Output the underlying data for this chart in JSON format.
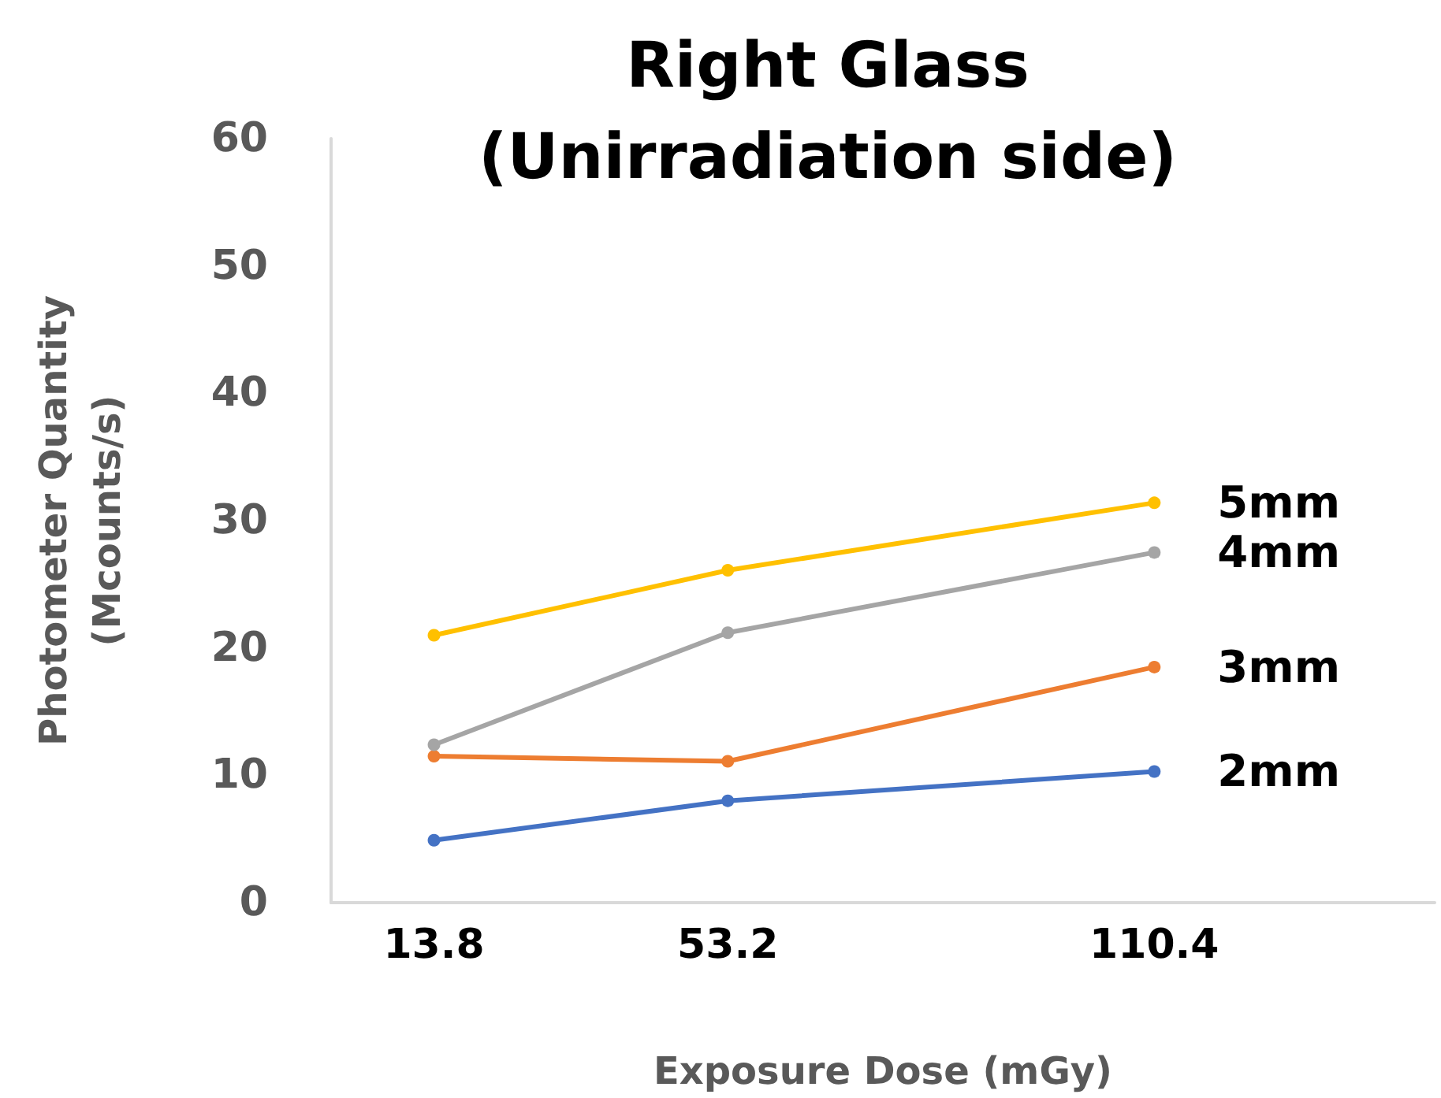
{
  "chart_data": {
    "type": "line",
    "title": "Right Glass\n(Unirradiation side)",
    "xlabel": "Exposure Dose (mGy)",
    "ylabel": "Photometer Quantity\n(Mcounts/s)",
    "x": [
      13.8,
      53.2,
      110.4
    ],
    "xlim": [
      0,
      148
    ],
    "xticks": [
      13.8,
      53.2,
      110.4
    ],
    "ylim": [
      0,
      60
    ],
    "yticks": [
      0,
      10,
      20,
      30,
      40,
      50,
      60
    ],
    "grid": false,
    "legend": false,
    "marker": "circle",
    "line_style": "solid",
    "series": [
      {
        "name": "2mm",
        "color": "#4472c4",
        "values": [
          4.9,
          8.0,
          10.3
        ]
      },
      {
        "name": "3mm",
        "color": "#ed7d31",
        "values": [
          11.5,
          11.1,
          18.5
        ]
      },
      {
        "name": "4mm",
        "color": "#a5a5a5",
        "values": [
          12.4,
          21.2,
          27.5
        ]
      },
      {
        "name": "5mm",
        "color": "#ffc000",
        "values": [
          21.0,
          26.1,
          31.4
        ]
      }
    ]
  }
}
